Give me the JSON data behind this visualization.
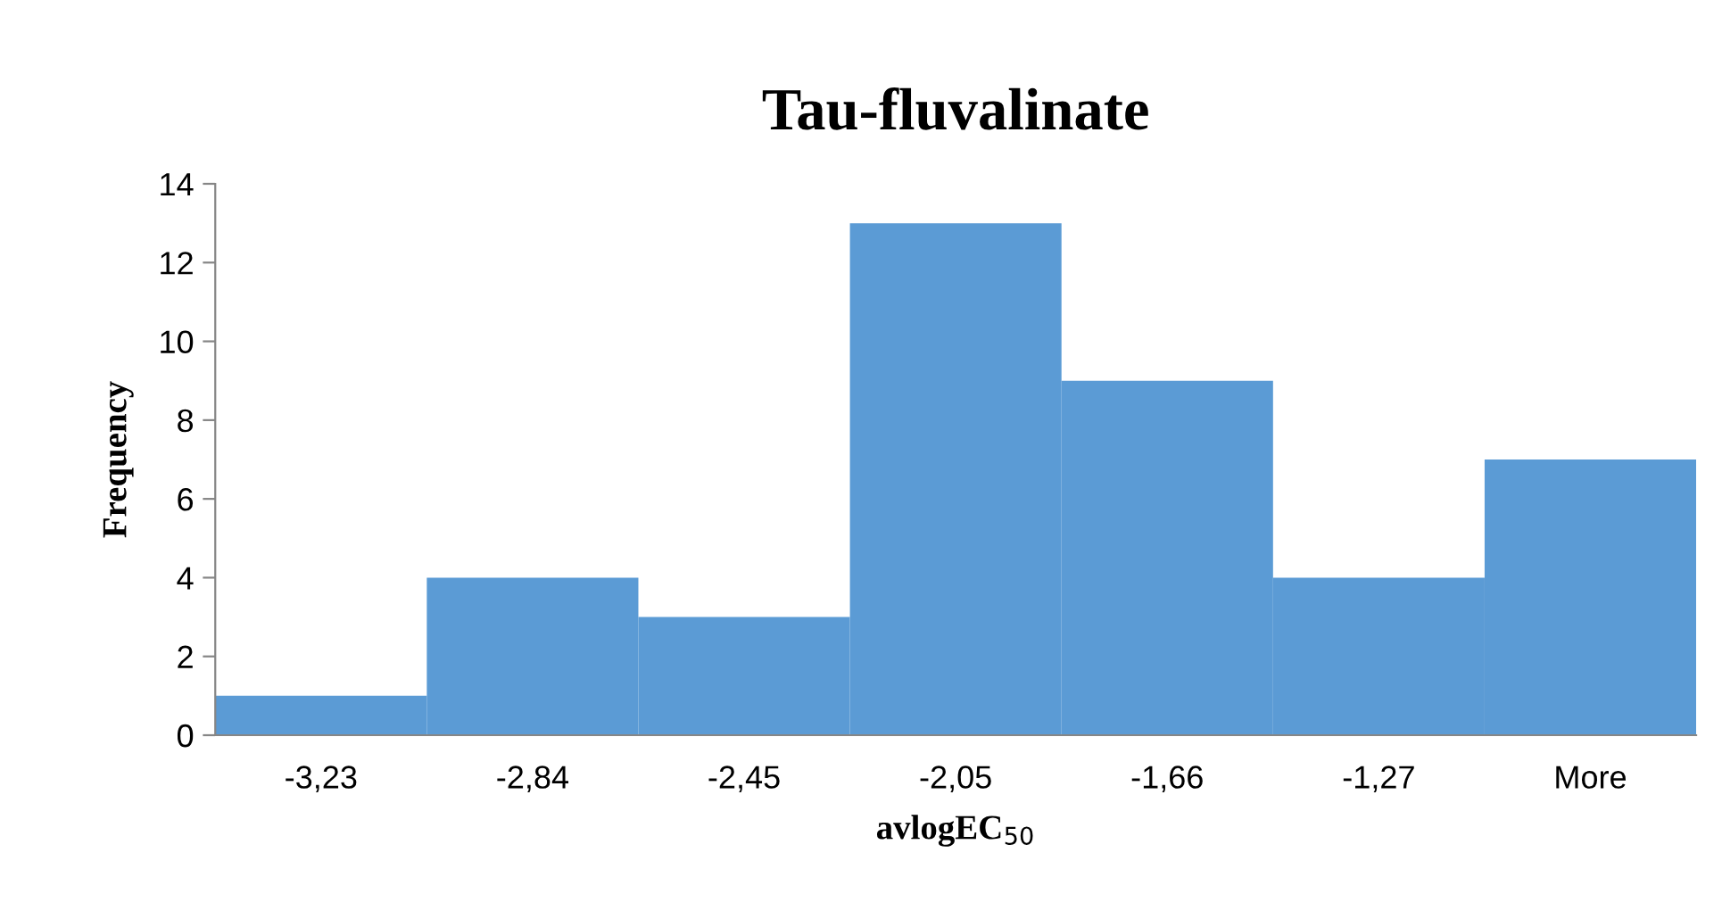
{
  "chart_data": {
    "type": "bar",
    "title": "Tau-fluvalinate",
    "xlabel": "avlogEC$_{50}$",
    "ylabel": "Frequency",
    "categories": [
      "-3,23",
      "-2,84",
      "-2,45",
      "-2,05",
      "-1,66",
      "-1,27",
      "More"
    ],
    "values": [
      1,
      4,
      3,
      13,
      9,
      4,
      7
    ],
    "color": "#5b9bd5",
    "ylim": [
      0,
      14
    ],
    "yticks": [
      0,
      2,
      4,
      6,
      8,
      10,
      12,
      14
    ],
    "grid": false,
    "legend": false
  }
}
